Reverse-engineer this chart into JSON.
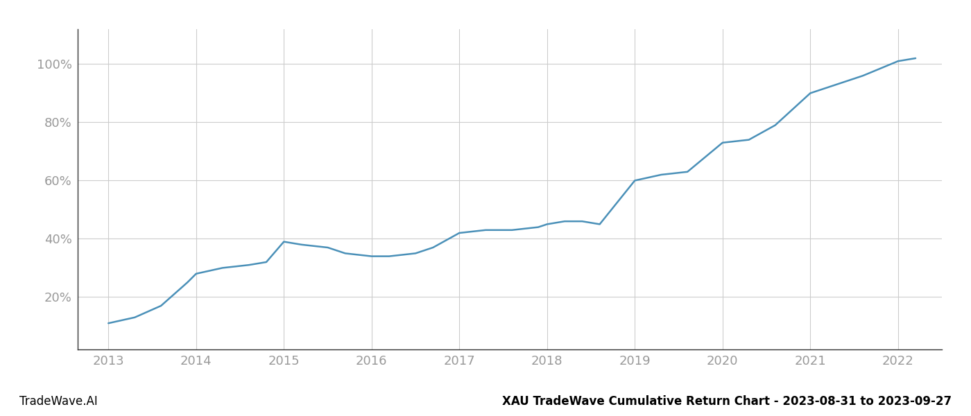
{
  "x_years": [
    2013.0,
    2013.3,
    2013.6,
    2013.9,
    2014.0,
    2014.3,
    2014.6,
    2014.8,
    2015.0,
    2015.2,
    2015.5,
    2015.7,
    2016.0,
    2016.2,
    2016.5,
    2016.7,
    2017.0,
    2017.3,
    2017.6,
    2017.9,
    2018.0,
    2018.2,
    2018.4,
    2018.6,
    2019.0,
    2019.3,
    2019.6,
    2020.0,
    2020.3,
    2020.6,
    2021.0,
    2021.3,
    2021.6,
    2022.0,
    2022.2
  ],
  "y_values": [
    11,
    13,
    17,
    25,
    28,
    30,
    31,
    32,
    39,
    38,
    37,
    35,
    34,
    34,
    35,
    37,
    42,
    43,
    43,
    44,
    45,
    46,
    46,
    45,
    60,
    62,
    63,
    73,
    74,
    79,
    90,
    93,
    96,
    101,
    102
  ],
  "line_color": "#4a90b8",
  "line_width": 1.8,
  "background_color": "#ffffff",
  "grid_color": "#cccccc",
  "ytick_labels": [
    "20%",
    "40%",
    "60%",
    "80%",
    "100%"
  ],
  "ytick_values": [
    20,
    40,
    60,
    80,
    100
  ],
  "xtick_labels": [
    "2013",
    "2014",
    "2015",
    "2016",
    "2017",
    "2018",
    "2019",
    "2020",
    "2021",
    "2022"
  ],
  "xtick_values": [
    2013,
    2014,
    2015,
    2016,
    2017,
    2018,
    2019,
    2020,
    2021,
    2022
  ],
  "xlim": [
    2012.65,
    2022.5
  ],
  "ylim": [
    2,
    112
  ],
  "footer_left": "TradeWave.AI",
  "footer_right": "XAU TradeWave Cumulative Return Chart - 2023-08-31 to 2023-09-27",
  "tick_color": "#999999",
  "left_spine_color": "#333333",
  "bottom_spine_color": "#333333"
}
